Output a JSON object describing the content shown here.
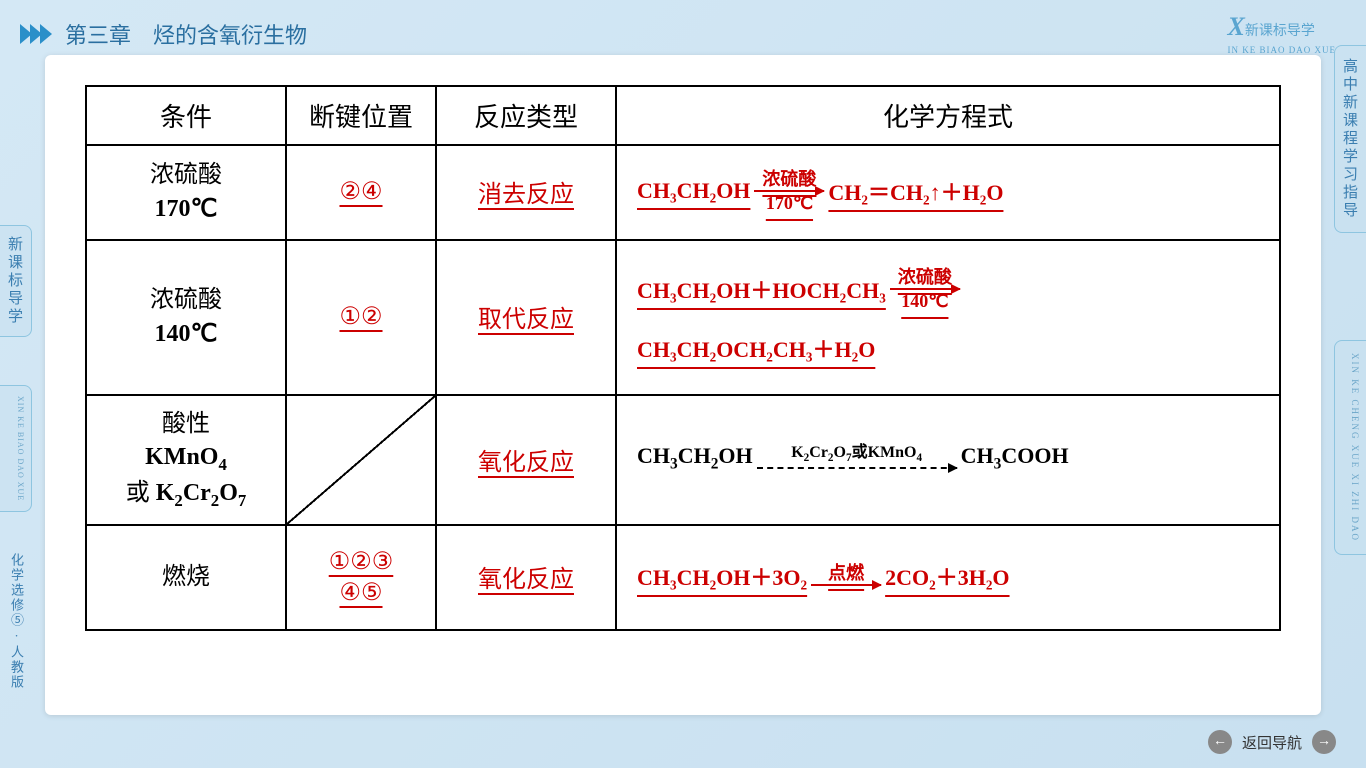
{
  "header": {
    "chapter": "第三章　烃的含氧衍生物"
  },
  "logo": {
    "x": "X",
    "cn": "新课标导学",
    "en": "IN KE BIAO DAO XUE"
  },
  "sideRight1": "高中新课程学习指导",
  "sideRight2": "XIN KE CHENG XUE XI ZHI DAO",
  "sideLeft1": "新课标导学",
  "sideLeft2": "XIN KE BIAO DAO XUE",
  "sideLeft3": "化学选修⑤·人教版",
  "table": {
    "headers": [
      "条件",
      "断键位置",
      "反应类型",
      "化学方程式"
    ],
    "rows": [
      {
        "cond_cn": "浓硫酸",
        "cond_temp": "170℃",
        "bond": "②④",
        "type": "消去反应",
        "eq_color": "#cc0000",
        "eq_left": "CH₃CH₂OH",
        "arrow_top": "浓硫酸",
        "arrow_bot": "170℃",
        "eq_right": "CH₂＝CH₂↑＋H₂O"
      },
      {
        "cond_cn": "浓硫酸",
        "cond_temp": "140℃",
        "bond": "①②",
        "type": "取代反应",
        "eq_color": "#cc0000",
        "eq_left": "CH₃CH₂OH＋HOCH₂CH₃",
        "arrow_top": "浓硫酸",
        "arrow_bot": "140℃",
        "eq_line2": "CH₃CH₂OCH₂CH₃＋H₂O"
      },
      {
        "cond_cn": "酸性",
        "cond_line2": "KMnO₄",
        "cond_line3": "或 K₂Cr₂O₇",
        "type": "氧化反应",
        "eq_color": "#000000",
        "eq_left": "CH₃CH₂OH",
        "arrow_top": "K₂Cr₂O₇或KMnO₄",
        "eq_right": "CH₃COOH"
      },
      {
        "cond_cn": "燃烧",
        "bond_l1": "①②③",
        "bond_l2": "④⑤",
        "type": "氧化反应",
        "eq_color": "#cc0000",
        "eq_left": "CH₃CH₂OH＋3O₂",
        "arrow_top": "点燃",
        "eq_right": "2CO₂＋3H₂O"
      }
    ]
  },
  "footer": {
    "back": "返回导航"
  },
  "colors": {
    "red": "#cc0000",
    "black": "#000000",
    "bg_start": "#d4e8f5",
    "bg_end": "#c8e0f0",
    "accent": "#2a8fc9"
  }
}
